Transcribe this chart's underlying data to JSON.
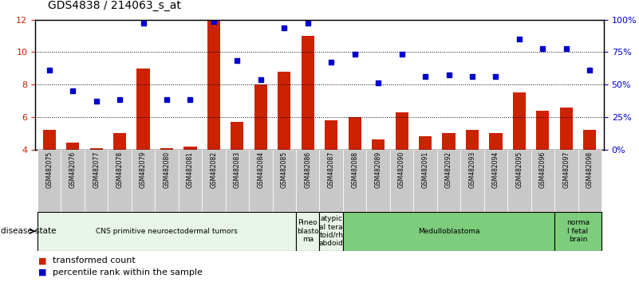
{
  "title": "GDS4838 / 214063_s_at",
  "samples": [
    "GSM482075",
    "GSM482076",
    "GSM482077",
    "GSM482078",
    "GSM482079",
    "GSM482080",
    "GSM482081",
    "GSM482082",
    "GSM482083",
    "GSM482084",
    "GSM482085",
    "GSM482086",
    "GSM482087",
    "GSM482088",
    "GSM482089",
    "GSM482090",
    "GSM482091",
    "GSM482092",
    "GSM482093",
    "GSM482094",
    "GSM482095",
    "GSM482096",
    "GSM482097",
    "GSM482098"
  ],
  "bar_values": [
    5.2,
    4.4,
    4.1,
    5.0,
    9.0,
    4.1,
    4.2,
    12.0,
    5.7,
    8.0,
    8.8,
    11.0,
    5.8,
    6.0,
    4.6,
    6.3,
    4.8,
    5.0,
    5.2,
    5.0,
    7.5,
    6.4,
    6.6,
    5.2
  ],
  "dot_values": [
    8.9,
    7.6,
    7.0,
    7.1,
    11.8,
    7.1,
    7.1,
    11.9,
    9.5,
    8.3,
    11.5,
    11.8,
    9.4,
    9.9,
    8.1,
    9.9,
    8.5,
    8.6,
    8.5,
    8.5,
    10.8,
    10.2,
    10.2,
    8.9
  ],
  "ylim_left": [
    4,
    12
  ],
  "yticks_left": [
    4,
    6,
    8,
    10,
    12
  ],
  "bar_color": "#cc2200",
  "dot_color": "#0000cc",
  "bar_bottom": 4,
  "disease_groups": [
    {
      "label": "CNS primitive neuroectodermal tumors",
      "start": 0,
      "end": 11,
      "color": "#e8f5e8"
    },
    {
      "label": "Pineo\nblasto\nma",
      "start": 11,
      "end": 12,
      "color": "#e8f5e8"
    },
    {
      "label": "atypic\nal tera\ntoid/rh\nabdoid",
      "start": 12,
      "end": 13,
      "color": "#e8f5e8"
    },
    {
      "label": "Medulloblastoma",
      "start": 13,
      "end": 22,
      "color": "#7dcd7d"
    },
    {
      "label": "norma\nl fetal\nbrain",
      "start": 22,
      "end": 24,
      "color": "#7dcd7d"
    }
  ],
  "legend_label_1": "transformed count",
  "legend_label_2": "percentile rank within the sample",
  "disease_state_label": "disease state"
}
